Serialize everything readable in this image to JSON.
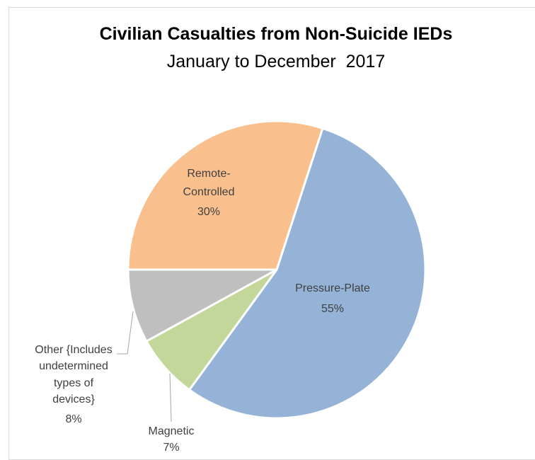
{
  "chart_data": {
    "type": "pie",
    "title": "Civilian Casualties from Non-Suicide IEDs",
    "subtitle": "January to December  2017",
    "start_angle_deg": 18,
    "colors": {
      "pressure_plate": "#95b3d7",
      "magnetic": "#c4d79b",
      "other": "#bfbfbf",
      "remote": "#f9c08e"
    },
    "slices": [
      {
        "key": "pressure_plate",
        "label": "Pressure-Plate",
        "value": 55,
        "value_label": "55%",
        "color": "#95b3d7"
      },
      {
        "key": "magnetic",
        "label": "Magnetic",
        "value": 7,
        "value_label": "7%",
        "color": "#c4d79b"
      },
      {
        "key": "other",
        "label": "Other {Includes undetermined types of devices}",
        "label_lines": [
          "Other {Includes",
          "undetermined",
          "types of",
          "devices}"
        ],
        "value": 8,
        "value_label": "8%",
        "color": "#bfbfbf"
      },
      {
        "key": "remote",
        "label": "Remote-Controlled",
        "label_lines": [
          "Remote-",
          "Controlled"
        ],
        "value": 30,
        "value_label": "30%",
        "color": "#f9c08e"
      }
    ]
  }
}
